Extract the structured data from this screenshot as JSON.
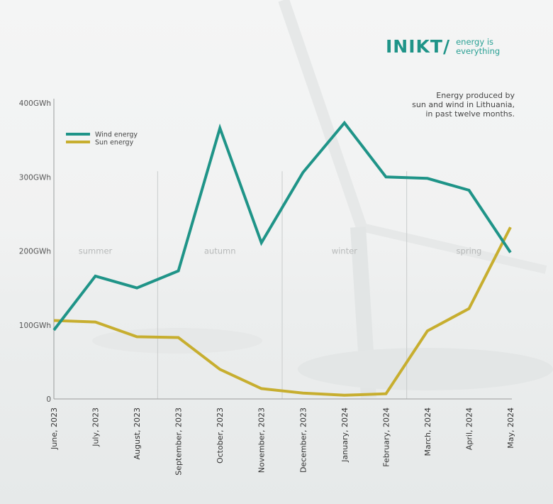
{
  "brand": {
    "logo_text": "INIKT/",
    "tagline_line1": "energy is",
    "tagline_line2": "everything",
    "primary_color": "#1f9488"
  },
  "subtitle_lines": [
    "Energy produced by",
    "sun and wind in Lithuania,",
    "in past twelve months."
  ],
  "chart_data": {
    "type": "line",
    "title": "",
    "xlabel": "",
    "ylabel": "",
    "categories": [
      "June, 2023",
      "July, 2023",
      "August, 2023",
      "September, 2023",
      "October, 2023",
      "November, 2023",
      "December, 2023",
      "January, 2024",
      "February, 2024",
      "March, 2024",
      "April, 2024",
      "May, 2024"
    ],
    "ylim": [
      0,
      400
    ],
    "yticks": [
      0,
      100,
      200,
      300,
      400
    ],
    "ytick_labels": [
      "0",
      "100GWh",
      "200GWh",
      "300GWh",
      "400GWh"
    ],
    "grid": false,
    "legend_position": "top-left",
    "series": [
      {
        "name": "Wind energy",
        "color": "#1f9488",
        "values": [
          93,
          166,
          150,
          173,
          366,
          211,
          306,
          373,
          300,
          298,
          282,
          198
        ]
      },
      {
        "name": "Sun energy",
        "color": "#c7ae2f",
        "values": [
          106,
          104,
          84,
          83,
          40,
          14,
          8,
          5,
          7,
          92,
          122,
          232
        ]
      }
    ],
    "season_dividers_after": [
      2,
      5,
      8
    ],
    "seasons": [
      {
        "label": "summer",
        "start": 0,
        "end": 2
      },
      {
        "label": "autumn",
        "start": 3,
        "end": 5
      },
      {
        "label": "winter",
        "start": 6,
        "end": 8
      },
      {
        "label": "spring",
        "start": 9,
        "end": 11
      }
    ]
  }
}
